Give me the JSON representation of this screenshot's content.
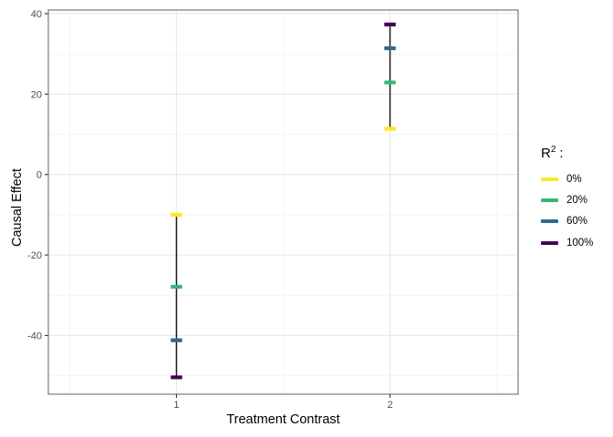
{
  "figure": {
    "background": "#FFFFFF"
  },
  "legend": {
    "title_base": "R",
    "title_exponent": "2",
    "title_colon": ":"
  },
  "chart_data": {
    "type": "crossbar",
    "title": "",
    "xlabel": "Treatment Contrast",
    "ylabel": "Causal Effect",
    "categories": [
      "1",
      "2"
    ],
    "x": [
      1,
      2
    ],
    "series": [
      {
        "name": "0%",
        "color": "#FDE725",
        "values": [
          -10.0,
          11.4
        ]
      },
      {
        "name": "20%",
        "color": "#35B779",
        "values": [
          -27.9,
          22.9
        ]
      },
      {
        "name": "60%",
        "color": "#31688E",
        "values": [
          -41.2,
          31.4
        ]
      },
      {
        "name": "100%",
        "color": "#440154",
        "values": [
          -50.4,
          37.3
        ]
      }
    ],
    "range_bars": [
      {
        "x": 1,
        "ymin": -50.4,
        "ymax": -10.0
      },
      {
        "x": 2,
        "ymin": 11.4,
        "ymax": 37.3
      }
    ],
    "xlim": [
      0.4,
      2.6
    ],
    "ylim": [
      -54.6,
      40.9
    ],
    "xticks": [
      1,
      2
    ],
    "xticks_minor": [
      0.5,
      1.5,
      2.5
    ],
    "yticks": [
      -40,
      -20,
      0,
      20,
      40
    ],
    "yticks_minor": [
      -50,
      -30,
      -10,
      10,
      30
    ],
    "legend_title": "R² :",
    "legend_position": "right",
    "grid": true,
    "colors": {
      "grid_major": "#E8E8E8",
      "grid_minor": "#F3F3F3",
      "panel_border": "#7A7A7A",
      "range_line": "#1A1A1A",
      "axis_tick": "#333333",
      "tick_label": "#4D4D4D"
    }
  }
}
